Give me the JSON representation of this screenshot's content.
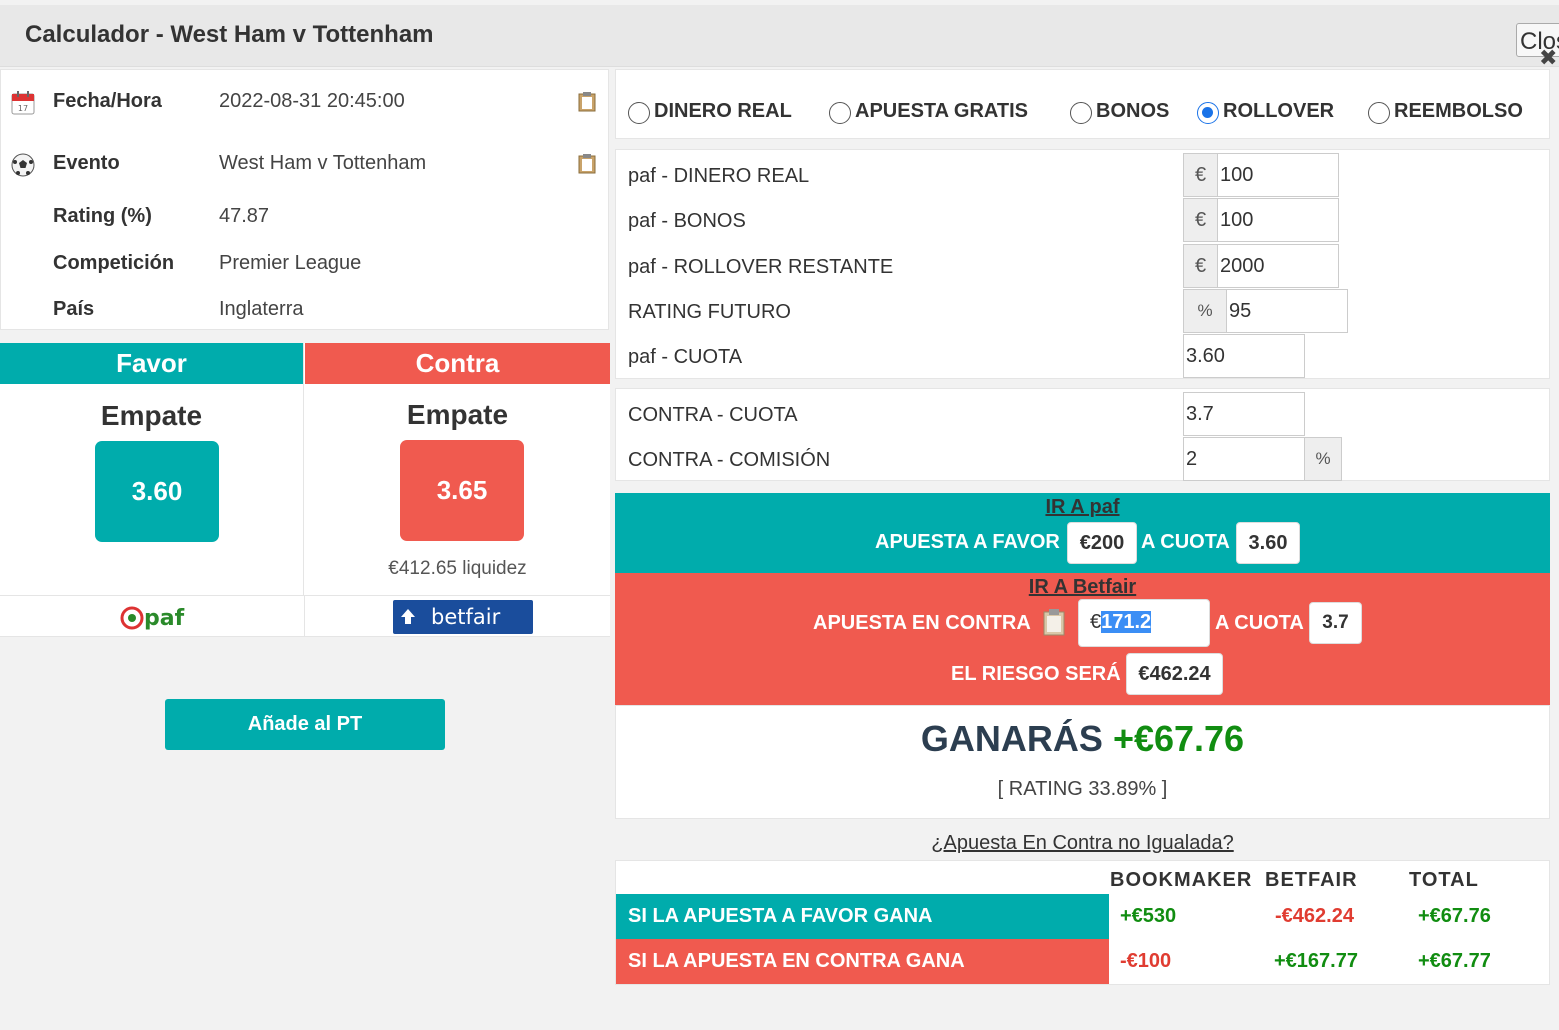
{
  "window": {
    "title": "Calculador - West Ham v Tottenham",
    "close_label": "Close"
  },
  "info": {
    "fecha_label": "Fecha/Hora",
    "fecha_value": "2022-08-31 20:45:00",
    "evento_label": "Evento",
    "evento_value": "West Ham v Tottenham",
    "rating_label": "Rating (%)",
    "rating_value": "47.87",
    "competicion_label": "Competición",
    "competicion_value": "Premier League",
    "pais_label": "País",
    "pais_value": "Inglaterra",
    "icons": [
      "calendar-icon",
      "football-icon",
      "clipboard-icon"
    ]
  },
  "favor": {
    "header": "Favor",
    "selection": "Empate",
    "odds": "3.60",
    "bookmaker": "paf"
  },
  "contra": {
    "header": "Contra",
    "selection": "Empate",
    "odds": "3.65",
    "liquidity": "€412.65 liquidez",
    "exchange": "betfair"
  },
  "add_button": "Añade al PT",
  "bet_types": {
    "options": [
      "DINERO REAL",
      "APUESTA GRATIS",
      "BONOS",
      "ROLLOVER",
      "REEMBOLSO"
    ],
    "selected": "ROLLOVER"
  },
  "form": {
    "dinero_real_label": "paf - DINERO REAL",
    "dinero_real_value": "100",
    "bonos_label": "paf - BONOS",
    "bonos_value": "100",
    "rollover_label": "paf - ROLLOVER RESTANTE",
    "rollover_value": "2000",
    "rating_futuro_label": "RATING FUTURO",
    "rating_futuro_value": "95",
    "cuota_label": "paf - CUOTA",
    "cuota_value": "3.60",
    "contra_cuota_label": "CONTRA - CUOTA",
    "contra_cuota_value": "3.7",
    "contra_comision_label": "CONTRA - COMISIÓN",
    "contra_comision_value": "2",
    "currency": "€",
    "percent": "%"
  },
  "instructions": {
    "ir_favor": "IR A paf",
    "favor_label": "APUESTA A FAVOR",
    "favor_stake": "€200",
    "a_cuota": "A CUOTA",
    "favor_odds": "3.60",
    "ir_contra": "IR A Betfair",
    "contra_label": "APUESTA EN CONTRA",
    "contra_currency": "€",
    "contra_stake": "171.2",
    "contra_odds": "3.7",
    "riesgo_label": "EL RIESGO SERÁ",
    "riesgo_value": "€462.24"
  },
  "result": {
    "ganaras_label": "GANARÁS",
    "ganaras_value": "+€67.76",
    "rating": "[ RATING 33.89% ]"
  },
  "unmatched_link": "¿Apuesta En Contra no Igualada?",
  "outcomes": {
    "headers": [
      "BOOKMAKER",
      "BETFAIR",
      "TOTAL"
    ],
    "rows": [
      {
        "label": "SI LA APUESTA A FAVOR GANA",
        "bookmaker": "+€530",
        "betfair": "-€462.24",
        "total": "+€67.76"
      },
      {
        "label": "SI LA APUESTA EN CONTRA GANA",
        "bookmaker": "-€100",
        "betfair": "+€167.77",
        "total": "+€67.77"
      }
    ]
  },
  "colors": {
    "teal": "#00acac",
    "red": "#f05a4f",
    "positive": "#118d11",
    "negative": "#e03c31"
  }
}
